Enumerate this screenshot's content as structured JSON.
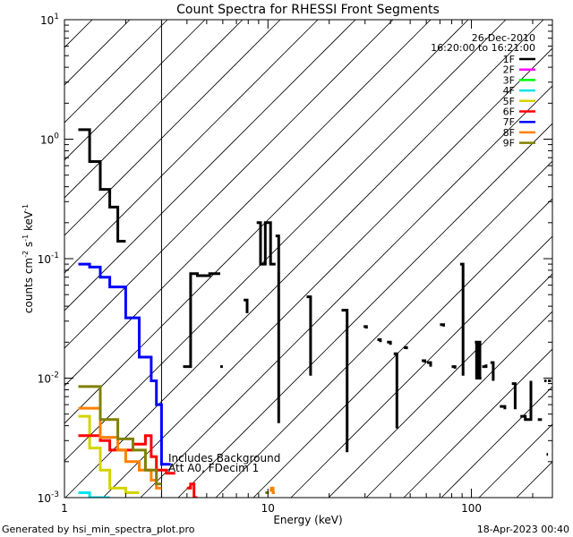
{
  "chart_data": {
    "type": "line",
    "subtype": "step-spectrum",
    "title": "Count Spectra for RHESSI Front Segments",
    "xlabel": "Energy (keV)",
    "ylabel_parts": {
      "base": "counts cm",
      "exp1": "-2",
      "mid": " s",
      "exp2": "-1",
      "unit": " keV",
      "exp3": "-1"
    },
    "xscale": "log",
    "yscale": "log",
    "xlim": [
      1,
      250
    ],
    "ylim": [
      0.001,
      10
    ],
    "x_ticks": [
      {
        "value": 1,
        "label": "1"
      },
      {
        "value": 10,
        "label": "10"
      },
      {
        "value": 100,
        "label": "100"
      }
    ],
    "y_ticks": [
      {
        "value": 0.001,
        "base": "10",
        "exp": "-3"
      },
      {
        "value": 0.01,
        "base": "10",
        "exp": "-2"
      },
      {
        "value": 0.1,
        "base": "10",
        "exp": "-1"
      },
      {
        "value": 1,
        "base": "10",
        "exp": "0"
      },
      {
        "value": 10,
        "base": "10",
        "exp": "1"
      }
    ],
    "date": "26-Dec-2010",
    "time_range": "16:20:00 to 16:21:00",
    "shaded_region": {
      "x_from": 1,
      "x_to": 3,
      "pattern": "diagonal-hatch"
    },
    "annotations": [
      "Includes Background",
      "Att A0, FDecim 1"
    ],
    "footer_left": "Generated by hsi_min_spectra_plot.pro",
    "footer_right": "18-Apr-2023 00:40",
    "series": [
      {
        "name": "1F",
        "color": "#000000",
        "segments": [
          {
            "edges": [
              1.17,
              1.33,
              1.5,
              1.67,
              1.83,
              2.0
            ],
            "values": [
              1.2,
              0.65,
              0.38,
              0.27,
              0.14
            ]
          },
          {
            "edges": [
              3.83,
              4.17,
              4.5,
              5.17,
              5.83
            ],
            "values": [
              0.0125,
              0.075,
              0.072,
              0.075
            ]
          },
          {
            "edges": [
              5.83,
              6.0
            ],
            "values": [
              0.0125
            ]
          },
          {
            "edges": [
              7.6,
              7.9
            ],
            "values": [
              0.045,
              0.035
            ]
          },
          {
            "edges": [
              8.8,
              9.2,
              9.7,
              10.3,
              10.9
            ],
            "values": [
              0.2,
              0.09,
              0.2,
              0.09
            ]
          },
          {
            "edges": [
              10.9,
              11.3
            ],
            "values": [
              0.155,
              0.0042
            ]
          },
          {
            "edges": [
              15.5,
              16.2
            ],
            "values": [
              0.048,
              0.0105
            ]
          },
          {
            "edges": [
              23.0,
              24.5
            ],
            "values": [
              0.037,
              0.0024
            ]
          },
          {
            "edges": [
              29.5,
              30.5
            ],
            "values": [
              0.027,
              0.026
            ]
          },
          {
            "edges": [
              34.5,
              35.7
            ],
            "values": [
              0.021,
              0.02
            ]
          },
          {
            "edges": [
              38.5,
              40.0
            ],
            "values": [
              0.02,
              0.019
            ]
          },
          {
            "edges": [
              41.5,
              43.0
            ],
            "values": [
              0.016,
              0.0038
            ]
          },
          {
            "edges": [
              46.5,
              48.0
            ],
            "values": [
              0.018,
              0.0175
            ]
          },
          {
            "edges": [
              57.0,
              59.0
            ],
            "values": [
              0.014,
              0.0135
            ]
          },
          {
            "edges": [
              60.5,
              63.0
            ],
            "values": [
              0.0135,
              0.0125
            ]
          },
          {
            "edges": [
              70.0,
              73.0
            ],
            "values": [
              0.028,
              0.027
            ]
          },
          {
            "edges": [
              80.0,
              83.0
            ],
            "values": [
              0.0125,
              0.012
            ]
          },
          {
            "edges": [
              88.0,
              91.0
            ],
            "values": [
              0.09,
              0.0105
            ]
          },
          {
            "edges": [
              104.0,
              106.0,
              108.0,
              110.0,
              112.0
            ],
            "values": [
              0.02,
              0.01,
              0.02,
              0.01
            ]
          },
          {
            "edges": [
              113.0,
              118.0
            ],
            "values": [
              0.0125,
              0.013
            ]
          },
          {
            "edges": [
              124.0,
              128.0
            ],
            "values": [
              0.0135,
              0.0095
            ]
          },
          {
            "edges": [
              138.0,
              146.0
            ],
            "values": [
              0.0058,
              0.0055
            ]
          },
          {
            "edges": [
              158.0,
              164.0
            ],
            "values": [
              0.009,
              0.0055
            ]
          },
          {
            "edges": [
              174.0,
              184.0,
              196.0
            ],
            "values": [
              0.0048,
              0.0045,
              0.0095
            ]
          },
          {
            "edges": [
              212.0,
              222.0
            ],
            "values": [
              0.0045,
              0.0045
            ]
          },
          {
            "edges": [
              228.0,
              234.0
            ],
            "values": [
              0.0095,
              0.0095
            ]
          },
          {
            "edges": [
              234.0,
              238.0
            ],
            "values": [
              0.0023,
              0.0023
            ]
          },
          {
            "edges": [
              238.0,
              246.0
            ],
            "values": [
              0.0095,
              0.0095
            ]
          },
          {
            "edges": [
              249.0,
              250.0
            ],
            "values": [
              0.008,
              0.008
            ]
          }
        ]
      },
      {
        "name": "2F",
        "color": "#ff00ff",
        "segments": []
      },
      {
        "name": "3F",
        "color": "#00ff00",
        "segments": []
      },
      {
        "name": "4F",
        "color": "#00e5ee",
        "segments": [
          {
            "edges": [
              1.17,
              1.33,
              1.5,
              1.67
            ],
            "values": [
              0.0011,
              0.001,
              0.001
            ]
          }
        ]
      },
      {
        "name": "5F",
        "color": "#d4d400",
        "segments": [
          {
            "edges": [
              1.17,
              1.33,
              1.5,
              1.67,
              1.83,
              2.0,
              2.17,
              2.33
            ],
            "values": [
              0.0048,
              0.0026,
              0.0017,
              0.0012,
              0.0012,
              0.0011,
              0.0011
            ]
          }
        ]
      },
      {
        "name": "6F",
        "color": "#ff0000",
        "segments": [
          {
            "edges": [
              1.17,
              1.33,
              1.5,
              1.67,
              1.83,
              2.0,
              2.17,
              2.33,
              2.5,
              2.67,
              2.83,
              3.0,
              3.17,
              3.5
            ],
            "values": [
              0.0033,
              0.0033,
              0.003,
              0.0025,
              0.0025,
              0.0025,
              0.0028,
              0.0028,
              0.0033,
              0.0022,
              0.0017,
              0.0017,
              0.0016
            ]
          },
          {
            "edges": [
              4.0,
              4.17,
              4.33,
              4.5
            ],
            "values": [
              0.0012,
              0.0013,
              0.001
            ]
          }
        ]
      },
      {
        "name": "7F",
        "color": "#0000ff",
        "segments": [
          {
            "edges": [
              1.17,
              1.33,
              1.5,
              1.67,
              1.83,
              2.0,
              2.17,
              2.33,
              2.5,
              2.67,
              2.83,
              3.0,
              3.17,
              3.33
            ],
            "values": [
              0.09,
              0.085,
              0.07,
              0.058,
              0.058,
              0.032,
              0.032,
              0.015,
              0.015,
              0.0095,
              0.006,
              0.0019,
              0.0019
            ]
          }
        ]
      },
      {
        "name": "8F",
        "color": "#ff8000",
        "segments": [
          {
            "edges": [
              1.17,
              1.33,
              1.5,
              1.67,
              1.83,
              2.0,
              2.17,
              2.33,
              2.5,
              2.67,
              2.83,
              3.0
            ],
            "values": [
              0.0056,
              0.0056,
              0.0032,
              0.0032,
              0.0025,
              0.002,
              0.002,
              0.0017,
              0.0017,
              0.0014,
              0.0012
            ]
          },
          {
            "edges": [
              10.2,
              10.4,
              10.6,
              10.8
            ],
            "values": [
              0.00115,
              0.0012,
              0.0011
            ]
          }
        ]
      },
      {
        "name": "9F",
        "color": "#808000",
        "segments": [
          {
            "edges": [
              1.17,
              1.33,
              1.5,
              1.67,
              1.83,
              2.0,
              2.17,
              2.33,
              2.5,
              2.67,
              2.83,
              3.0
            ],
            "values": [
              0.0085,
              0.0085,
              0.0045,
              0.0045,
              0.0031,
              0.0031,
              0.0025,
              0.0025,
              0.0017,
              0.0017,
              0.0013
            ]
          },
          {
            "edges": [
              9.7,
              9.9,
              10.1
            ],
            "values": [
              0.0011,
              0.0011
            ]
          }
        ]
      }
    ]
  }
}
